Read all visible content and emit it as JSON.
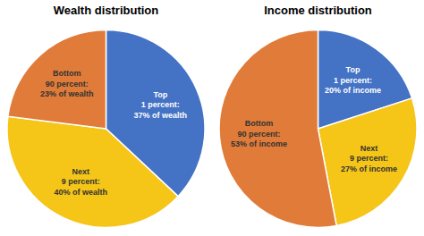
{
  "chart_data": [
    {
      "type": "pie",
      "title": "Wealth distribution",
      "categories": [
        "Top\n1 percent:\n37% of wealth",
        "Next\n9 percent:\n40% of wealth",
        "Bottom\n90 percent:\n23% of wealth"
      ],
      "values": [
        37,
        40,
        23
      ],
      "colors": [
        "#4472c4",
        "#f5c518",
        "#e07b39"
      ]
    },
    {
      "type": "pie",
      "title": "Income distribution",
      "categories": [
        "Top\n1 percent:\n20% of income",
        "Next\n9 percent:\n27% of income",
        "Bottom\n90 percent:\n53% of income"
      ],
      "values": [
        20,
        27,
        53
      ],
      "colors": [
        "#4472c4",
        "#f5c518",
        "#e07b39"
      ]
    }
  ]
}
